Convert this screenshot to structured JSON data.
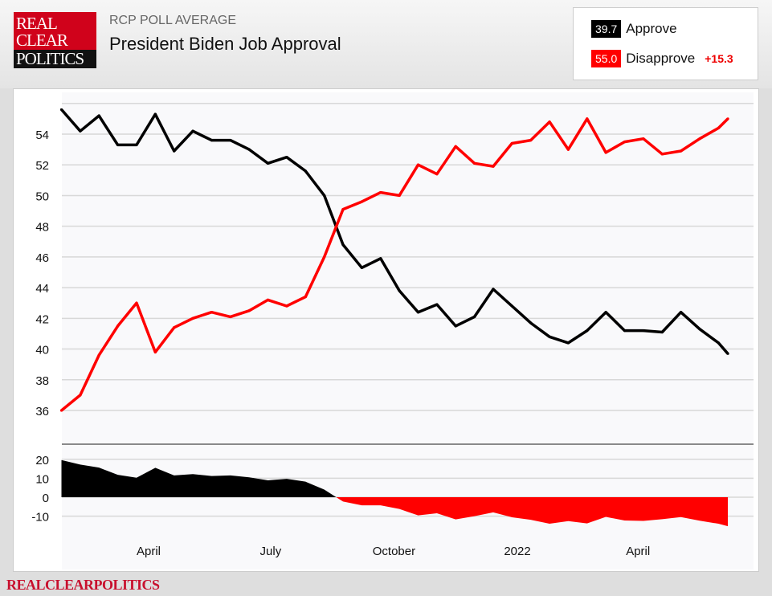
{
  "header": {
    "logo_text": [
      "REAL",
      "CLEAR",
      "POLITICS"
    ],
    "kicker": "RCP POLL AVERAGE",
    "title": "President Biden Job Approval"
  },
  "legend": {
    "approve": {
      "value": "39.7",
      "label": "Approve",
      "color": "#000000"
    },
    "disapprove": {
      "value": "55.0",
      "label": "Disapprove",
      "color": "#ff0000"
    },
    "spread": "+15.3"
  },
  "footer": "REALCLEARPOLITICS",
  "chart_data": [
    {
      "type": "line",
      "title": "President Biden Job Approval",
      "x": [
        "2021-01-26",
        "2021-02-09",
        "2021-02-23",
        "2021-03-09",
        "2021-03-23",
        "2021-04-06",
        "2021-04-20",
        "2021-05-04",
        "2021-05-18",
        "2021-06-01",
        "2021-06-15",
        "2021-06-29",
        "2021-07-13",
        "2021-07-27",
        "2021-08-10",
        "2021-08-24",
        "2021-09-07",
        "2021-09-21",
        "2021-10-05",
        "2021-10-19",
        "2021-11-02",
        "2021-11-16",
        "2021-11-30",
        "2021-12-14",
        "2021-12-28",
        "2022-01-11",
        "2022-01-25",
        "2022-02-08",
        "2022-02-22",
        "2022-03-08",
        "2022-03-22",
        "2022-04-05",
        "2022-04-19",
        "2022-05-03",
        "2022-05-17",
        "2022-05-31",
        "2022-06-07"
      ],
      "series": [
        {
          "name": "Approve",
          "color": "#000000",
          "values": [
            55.6,
            54.2,
            55.2,
            53.3,
            53.3,
            55.3,
            52.9,
            54.2,
            53.6,
            53.6,
            53.0,
            52.1,
            52.5,
            51.6,
            50.0,
            46.8,
            45.3,
            45.9,
            43.8,
            42.4,
            42.9,
            41.5,
            42.1,
            43.9,
            42.8,
            41.7,
            40.8,
            40.4,
            41.2,
            42.4,
            41.2,
            41.2,
            41.1,
            42.4,
            41.3,
            40.4,
            39.7
          ]
        },
        {
          "name": "Disapprove",
          "color": "#ff0000",
          "values": [
            36.0,
            37.0,
            39.6,
            41.5,
            43.0,
            39.8,
            41.4,
            42.0,
            42.4,
            42.1,
            42.5,
            43.2,
            42.8,
            43.4,
            46.0,
            49.1,
            49.6,
            50.2,
            50.0,
            52.0,
            51.4,
            53.2,
            52.1,
            51.9,
            53.4,
            53.6,
            54.8,
            53.0,
            55.0,
            52.8,
            53.5,
            53.7,
            52.7,
            52.9,
            53.7,
            54.4,
            55.0
          ]
        }
      ],
      "yticks": [
        36,
        38,
        40,
        42,
        44,
        46,
        48,
        50,
        52,
        54
      ],
      "ylim": [
        35,
        56
      ],
      "xticks": [
        {
          "date": "2021-04-01",
          "label": "April"
        },
        {
          "date": "2021-07-01",
          "label": "July"
        },
        {
          "date": "2021-10-01",
          "label": "October"
        },
        {
          "date": "2022-01-01",
          "label": "2022"
        },
        {
          "date": "2022-04-01",
          "label": "April"
        }
      ],
      "grid": true
    },
    {
      "type": "area",
      "title": "",
      "series": [
        {
          "name": "Spread",
          "derived_from": "Approve minus Disapprove"
        }
      ],
      "yticks": [
        20,
        10,
        0,
        -10
      ],
      "ylim": [
        -18,
        25
      ],
      "positive_color": "#000000",
      "negative_color": "#ff0000",
      "grid": true
    }
  ]
}
